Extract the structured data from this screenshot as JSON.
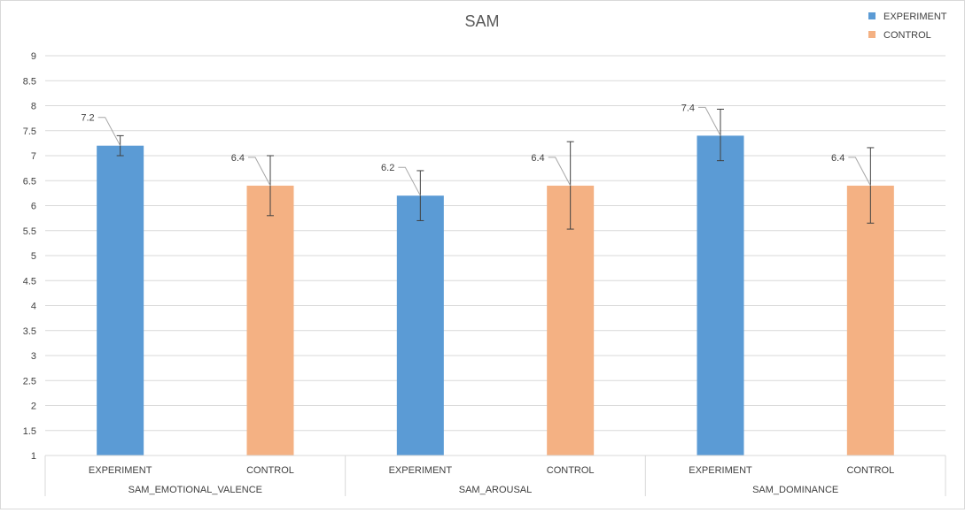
{
  "chart_data": {
    "type": "bar",
    "title": "SAM",
    "xlabel": "",
    "ylabel": "",
    "ylim": [
      1,
      9
    ],
    "yticks": [
      "1",
      "1.5",
      "2",
      "2.5",
      "3",
      "3.5",
      "4",
      "4.5",
      "5",
      "5.5",
      "6",
      "6.5",
      "7",
      "7.5",
      "8",
      "8.5",
      "9"
    ],
    "grid": true,
    "legend_position": "top-right",
    "groups": [
      "SAM_EMOTIONAL_VALENCE",
      "SAM_AROUSAL",
      "SAM_DOMINANCE"
    ],
    "series": [
      {
        "name": "EXPERIMENT",
        "color": "#5b9bd5",
        "values": [
          7.2,
          6.2,
          7.4
        ],
        "error_low": [
          7.0,
          5.7,
          6.9
        ],
        "error_high": [
          7.4,
          6.7,
          7.93
        ],
        "labels": [
          "7.2",
          "6.2",
          "7.4"
        ]
      },
      {
        "name": "CONTROL",
        "color": "#f4b183",
        "values": [
          6.4,
          6.4,
          6.4
        ],
        "error_low": [
          5.8,
          5.53,
          5.65
        ],
        "error_high": [
          7.0,
          7.28,
          7.16
        ],
        "labels": [
          "6.4",
          "6.4",
          "6.4"
        ]
      }
    ],
    "grid_color": "#d9d9d9",
    "text_color": "#404040",
    "title_color": "#595959"
  }
}
